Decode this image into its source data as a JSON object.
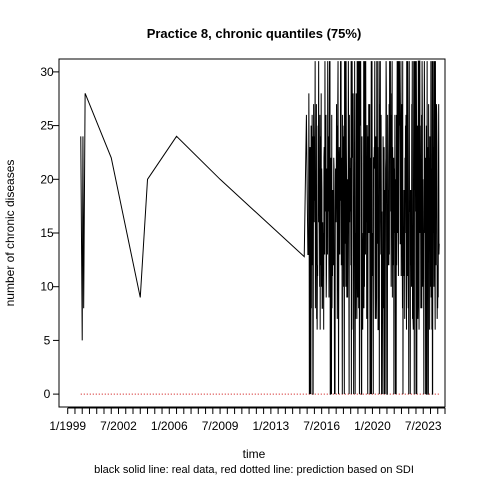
{
  "chart_data": {
    "type": "line",
    "title": "Practice 8, chronic quantiles (75%)",
    "xlabel": "time",
    "ylabel": "number of chronic diseases",
    "footnote": "black solid line: real data, red dotted line: prediction based on SDI",
    "x_tick_labels": [
      "1/1999",
      "7/2002",
      "1/2006",
      "7/2009",
      "1/2013",
      "7/2016",
      "1/2020",
      "7/2023"
    ],
    "x_tick_dates": [
      1999.0,
      2002.5,
      2006.0,
      2009.5,
      2013.0,
      2016.5,
      2020.0,
      2023.5
    ],
    "xlim": [
      1998.4,
      2025.0
    ],
    "y_ticks": [
      0,
      5,
      10,
      15,
      20,
      25,
      30
    ],
    "ylim": [
      -1.2,
      31.2
    ],
    "grid": false,
    "series": [
      {
        "style": "black solid",
        "color": "#000000",
        "x": [
          1999.9,
          2000.0,
          2000.05,
          2000.1,
          2000.2,
          2002.0,
          2004.0,
          2004.5,
          2006.5,
          2009.5,
          2015.3,
          2015.45,
          2015.55
        ],
        "y": [
          24,
          5,
          24,
          8,
          28,
          22,
          9,
          20,
          24,
          20,
          12.8,
          26,
          13
        ]
      },
      {
        "style": "red dotted",
        "color": "#cc0000",
        "x": [
          1999.9,
          2024.6
        ],
        "y": [
          0,
          0
        ]
      }
    ],
    "dense_segment": {
      "x_range": [
        2015.6,
        2024.6
      ],
      "y_min": 0,
      "y_max": 31,
      "central": 17
    }
  }
}
